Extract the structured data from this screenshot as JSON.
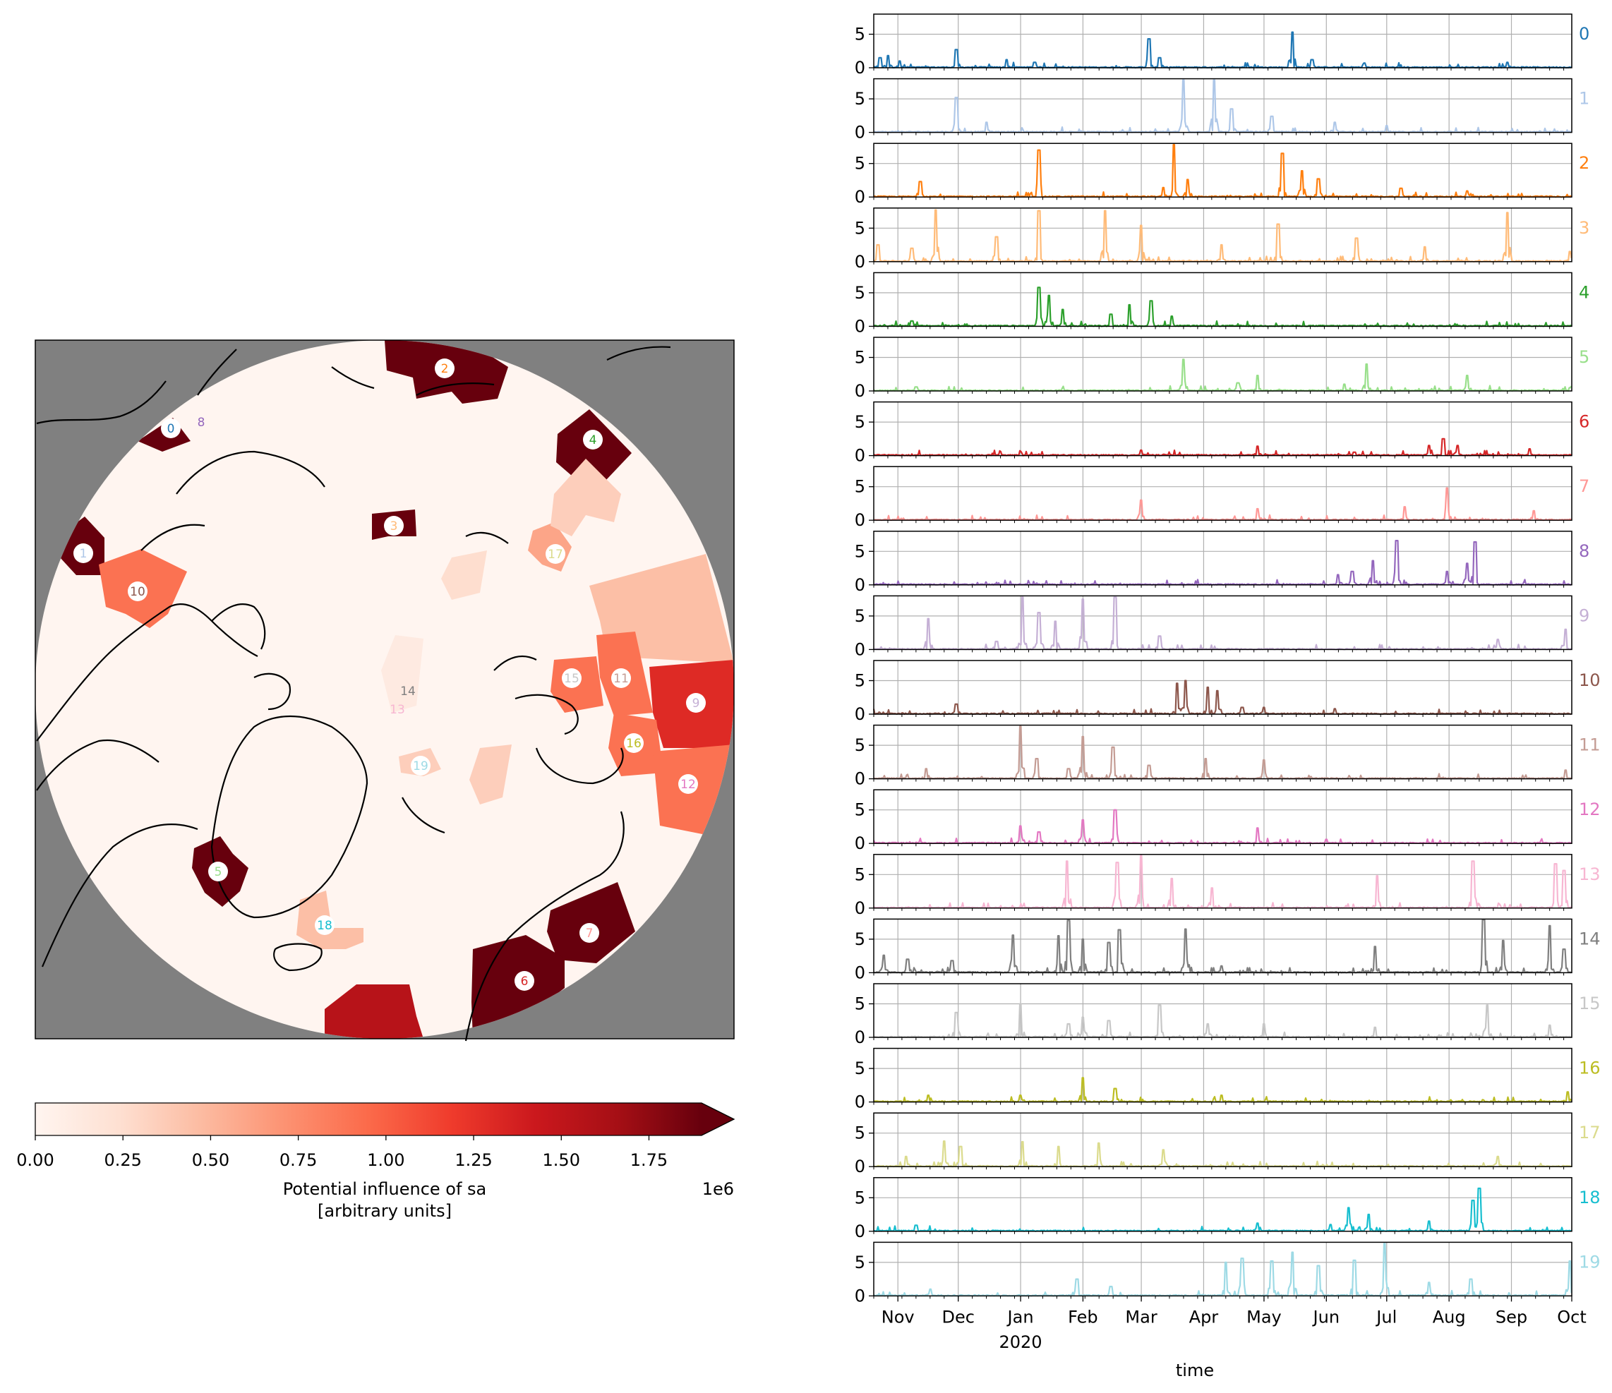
{
  "chart_data": [
    {
      "type": "heatmap",
      "title": "",
      "colorbar": {
        "label_line1": "Potential influence of sa",
        "label_line2": "[arbitrary units]",
        "ticks": [
          "0.00",
          "0.25",
          "0.50",
          "0.75",
          "1.00",
          "1.25",
          "1.50",
          "1.75"
        ],
        "tick_values": [
          0,
          0.25,
          0.5,
          0.75,
          1.0,
          1.25,
          1.5,
          1.75
        ],
        "scale_note": "1e6",
        "range": [
          0,
          1.9
        ],
        "extend": "max",
        "colormap": "Reds"
      },
      "regions": [
        {
          "label": "0",
          "value": 1.9,
          "color": "#1f77b4"
        },
        {
          "label": "1",
          "value": 1.9,
          "color": "#aec7e8"
        },
        {
          "label": "2",
          "value": 1.9,
          "color": "#ff7f0e"
        },
        {
          "label": "3",
          "value": 1.9,
          "color": "#ffbb78"
        },
        {
          "label": "4",
          "value": 1.9,
          "color": "#2ca02c"
        },
        {
          "label": "5",
          "value": 1.9,
          "color": "#98df8a"
        },
        {
          "label": "6",
          "value": 1.9,
          "color": "#d62728"
        },
        {
          "label": "7",
          "value": 1.9,
          "color": "#ff9896"
        },
        {
          "label": "8",
          "value": 0.0,
          "color": "#9467bd"
        },
        {
          "label": "9",
          "value": 1.3,
          "color": "#c5b0d5"
        },
        {
          "label": "10",
          "value": 0.9,
          "color": "#8c564b"
        },
        {
          "label": "11",
          "value": 0.9,
          "color": "#c49c94"
        },
        {
          "label": "12",
          "value": 0.9,
          "color": "#e377c2"
        },
        {
          "label": "13",
          "value": 0.05,
          "color": "#f7b6d2"
        },
        {
          "label": "14",
          "value": 0.05,
          "color": "#7f7f7f"
        },
        {
          "label": "15",
          "value": 0.9,
          "color": "#c7c7c7"
        },
        {
          "label": "16",
          "value": 0.9,
          "color": "#bcbd22"
        },
        {
          "label": "17",
          "value": 0.6,
          "color": "#dbdb8d"
        },
        {
          "label": "18",
          "value": 0.45,
          "color": "#17becf"
        },
        {
          "label": "19",
          "value": 0.35,
          "color": "#9edae5"
        }
      ]
    },
    {
      "type": "line",
      "xlabel": "time",
      "x_ticks": [
        "Nov",
        "Dec",
        "Jan",
        "Feb",
        "Mar",
        "Apr",
        "May",
        "Jun",
        "Jul",
        "Aug",
        "Sep",
        "Oct"
      ],
      "x_year_label": "2020",
      "x_range": [
        "2019-10-20",
        "2020-10-01"
      ],
      "y_ticks": [
        "0",
        "5"
      ],
      "ylim": [
        0,
        8
      ],
      "grid": true,
      "series": [
        {
          "name": "0",
          "color": "#1f77b4",
          "peaks": [
            [
              "2019-10-23",
              1.5
            ],
            [
              "2019-10-27",
              1.8
            ],
            [
              "2019-11-02",
              1
            ],
            [
              "2019-11-30",
              2.7
            ],
            [
              "2019-12-25",
              1.2
            ],
            [
              "2020-01-08",
              0.8
            ],
            [
              "2020-03-05",
              4.3
            ],
            [
              "2020-03-10",
              1.5
            ],
            [
              "2020-05-15",
              5.3
            ],
            [
              "2020-05-25",
              1.2
            ],
            [
              "2020-06-20",
              0.7
            ],
            [
              "2020-08-30",
              0.8
            ]
          ]
        },
        {
          "name": "1",
          "color": "#aec7e8",
          "peaks": [
            [
              "2019-11-30",
              5.2
            ],
            [
              "2019-12-15",
              1.5
            ],
            [
              "2020-03-22",
              7.8
            ],
            [
              "2020-04-06",
              7.8
            ],
            [
              "2020-04-15",
              3.5
            ],
            [
              "2020-05-05",
              2.4
            ],
            [
              "2020-06-05",
              1.5
            ],
            [
              "2020-07-01",
              1
            ]
          ]
        },
        {
          "name": "2",
          "color": "#ff7f0e",
          "peaks": [
            [
              "2019-11-12",
              2.3
            ],
            [
              "2020-01-10",
              7
            ],
            [
              "2020-03-12",
              1.4
            ],
            [
              "2020-03-17",
              7.8
            ],
            [
              "2020-03-24",
              2.6
            ],
            [
              "2020-05-10",
              6.5
            ],
            [
              "2020-05-20",
              3.9
            ],
            [
              "2020-05-28",
              2.7
            ],
            [
              "2020-07-08",
              1.3
            ],
            [
              "2020-08-10",
              0.9
            ]
          ]
        },
        {
          "name": "3",
          "color": "#ffbb78",
          "peaks": [
            [
              "2019-10-22",
              2.5
            ],
            [
              "2019-11-08",
              2
            ],
            [
              "2019-11-20",
              7.7
            ],
            [
              "2019-12-20",
              3.7
            ],
            [
              "2020-01-10",
              7.6
            ],
            [
              "2020-02-12",
              7.6
            ],
            [
              "2020-03-01",
              5.4
            ],
            [
              "2020-04-10",
              2.5
            ],
            [
              "2020-05-08",
              5.6
            ],
            [
              "2020-06-16",
              3.5
            ],
            [
              "2020-07-20",
              2.2
            ],
            [
              "2020-08-30",
              7.3
            ],
            [
              "2020-09-30",
              1.5
            ]
          ]
        },
        {
          "name": "4",
          "color": "#2ca02c",
          "peaks": [
            [
              "2019-11-08",
              0.8
            ],
            [
              "2020-01-10",
              5.8
            ],
            [
              "2020-01-15",
              4.6
            ],
            [
              "2020-01-22",
              2.5
            ],
            [
              "2020-02-15",
              1.8
            ],
            [
              "2020-02-24",
              3.2
            ],
            [
              "2020-03-06",
              3.8
            ],
            [
              "2020-03-16",
              1.5
            ]
          ]
        },
        {
          "name": "5",
          "color": "#98df8a",
          "peaks": [
            [
              "2019-11-10",
              0.6
            ],
            [
              "2020-03-22",
              4.7
            ],
            [
              "2020-04-18",
              1.2
            ],
            [
              "2020-04-28",
              2.3
            ],
            [
              "2020-06-10",
              1
            ],
            [
              "2020-06-21",
              4
            ],
            [
              "2020-08-10",
              2.3
            ],
            [
              "2020-09-30",
              0.5
            ]
          ]
        },
        {
          "name": "6",
          "color": "#d62728",
          "peaks": [
            [
              "2020-03-01",
              0.8
            ],
            [
              "2020-04-28",
              1.4
            ],
            [
              "2020-06-15",
              0.5
            ],
            [
              "2020-07-22",
              1.5
            ],
            [
              "2020-07-29",
              2.5
            ],
            [
              "2020-08-05",
              1.5
            ],
            [
              "2020-09-10",
              1
            ]
          ]
        },
        {
          "name": "7",
          "color": "#ff9896",
          "peaks": [
            [
              "2020-03-01",
              3
            ],
            [
              "2020-04-28",
              1.7
            ],
            [
              "2020-07-10",
              2
            ],
            [
              "2020-07-31",
              4.8
            ],
            [
              "2020-09-12",
              1.4
            ]
          ]
        },
        {
          "name": "8",
          "color": "#9467bd",
          "peaks": [
            [
              "2020-06-07",
              1.5
            ],
            [
              "2020-06-14",
              2
            ],
            [
              "2020-06-24",
              3.6
            ],
            [
              "2020-07-06",
              6.6
            ],
            [
              "2020-07-31",
              2
            ],
            [
              "2020-08-10",
              3.2
            ],
            [
              "2020-08-14",
              6.4
            ]
          ]
        },
        {
          "name": "9",
          "color": "#c5b0d5",
          "peaks": [
            [
              "2019-11-16",
              4.6
            ],
            [
              "2019-12-20",
              1.2
            ],
            [
              "2020-01-02",
              7.8
            ],
            [
              "2020-01-10",
              5.5
            ],
            [
              "2020-01-18",
              4.2
            ],
            [
              "2020-02-01",
              7.5
            ],
            [
              "2020-02-17",
              7.8
            ],
            [
              "2020-03-10",
              2
            ],
            [
              "2020-08-25",
              1.5
            ],
            [
              "2020-09-28",
              3
            ]
          ]
        },
        {
          "name": "10",
          "color": "#8c564b",
          "peaks": [
            [
              "2019-11-30",
              1.5
            ],
            [
              "2020-03-19",
              4.6
            ],
            [
              "2020-03-23",
              5
            ],
            [
              "2020-04-03",
              4
            ],
            [
              "2020-04-08",
              3.5
            ],
            [
              "2020-04-20",
              1
            ],
            [
              "2020-05-01",
              1
            ],
            [
              "2020-06-05",
              0.8
            ]
          ]
        },
        {
          "name": "11",
          "color": "#c49c94",
          "peaks": [
            [
              "2019-11-15",
              1.5
            ],
            [
              "2020-01-01",
              7.8
            ],
            [
              "2020-01-09",
              3
            ],
            [
              "2020-01-25",
              1.5
            ],
            [
              "2020-02-01",
              6.3
            ],
            [
              "2020-02-16",
              4.7
            ],
            [
              "2020-03-05",
              2
            ],
            [
              "2020-04-02",
              3
            ],
            [
              "2020-05-01",
              2.8
            ],
            [
              "2020-09-28",
              1.3
            ]
          ]
        },
        {
          "name": "12",
          "color": "#e377c2",
          "peaks": [
            [
              "2020-01-01",
              2.6
            ],
            [
              "2020-01-10",
              1.7
            ],
            [
              "2020-02-01",
              3.5
            ],
            [
              "2020-02-17",
              5
            ],
            [
              "2020-04-28",
              2.3
            ],
            [
              "2020-06-01",
              0.6
            ]
          ]
        },
        {
          "name": "13",
          "color": "#f7b6d2",
          "peaks": [
            [
              "2020-01-24",
              7
            ],
            [
              "2020-02-18",
              6.8
            ],
            [
              "2020-03-01",
              7.8
            ],
            [
              "2020-03-16",
              4.4
            ],
            [
              "2020-04-05",
              3
            ],
            [
              "2020-06-26",
              4.8
            ],
            [
              "2020-08-13",
              7
            ],
            [
              "2020-09-23",
              6.6
            ],
            [
              "2020-09-27",
              5.6
            ]
          ]
        },
        {
          "name": "14",
          "color": "#7f7f7f",
          "peaks": [
            [
              "2019-10-25",
              2.6
            ],
            [
              "2019-11-06",
              2
            ],
            [
              "2019-11-28",
              1.8
            ],
            [
              "2019-12-28",
              5.6
            ],
            [
              "2020-01-20",
              5.5
            ],
            [
              "2020-01-25",
              7.8
            ],
            [
              "2020-02-01",
              5
            ],
            [
              "2020-02-14",
              4.5
            ],
            [
              "2020-02-19",
              6.4
            ],
            [
              "2020-03-23",
              6.5
            ],
            [
              "2020-04-10",
              1
            ],
            [
              "2020-06-25",
              3.9
            ],
            [
              "2020-08-18",
              7.9
            ],
            [
              "2020-08-28",
              4.8
            ],
            [
              "2020-09-20",
              7
            ],
            [
              "2020-09-27",
              3.5
            ]
          ]
        },
        {
          "name": "15",
          "color": "#c7c7c7",
          "peaks": [
            [
              "2019-11-30",
              3.7
            ],
            [
              "2020-01-01",
              5
            ],
            [
              "2020-01-25",
              2
            ],
            [
              "2020-02-01",
              3
            ],
            [
              "2020-02-14",
              2.5
            ],
            [
              "2020-03-10",
              4.8
            ],
            [
              "2020-04-03",
              2
            ],
            [
              "2020-05-01",
              2
            ],
            [
              "2020-06-25",
              1.5
            ],
            [
              "2020-08-20",
              4.8
            ],
            [
              "2020-09-20",
              1.8
            ]
          ]
        },
        {
          "name": "16",
          "color": "#bcbd22",
          "peaks": [
            [
              "2019-11-16",
              1
            ],
            [
              "2020-01-01",
              1
            ],
            [
              "2020-02-01",
              3.6
            ],
            [
              "2020-02-17",
              2
            ],
            [
              "2020-04-10",
              1
            ],
            [
              "2020-09-29",
              1.5
            ]
          ]
        },
        {
          "name": "17",
          "color": "#dbdb8d",
          "peaks": [
            [
              "2019-11-05",
              1.5
            ],
            [
              "2019-11-24",
              3.8
            ],
            [
              "2019-12-02",
              3
            ],
            [
              "2020-01-02",
              3.7
            ],
            [
              "2020-01-20",
              3
            ],
            [
              "2020-02-09",
              3.5
            ],
            [
              "2020-03-12",
              2.5
            ],
            [
              "2020-08-25",
              1.5
            ]
          ]
        },
        {
          "name": "18",
          "color": "#17becf",
          "peaks": [
            [
              "2019-11-10",
              0.9
            ],
            [
              "2020-04-28",
              1.2
            ],
            [
              "2020-06-03",
              1
            ],
            [
              "2020-06-12",
              3.5
            ],
            [
              "2020-06-22",
              2.5
            ],
            [
              "2020-07-22",
              1.5
            ],
            [
              "2020-08-13",
              4.6
            ],
            [
              "2020-08-16",
              6.4
            ]
          ]
        },
        {
          "name": "19",
          "color": "#9edae5",
          "peaks": [
            [
              "2019-11-17",
              1
            ],
            [
              "2020-01-29",
              2.5
            ],
            [
              "2020-02-15",
              1.4
            ],
            [
              "2020-04-12",
              5
            ],
            [
              "2020-04-20",
              5.6
            ],
            [
              "2020-05-05",
              5.2
            ],
            [
              "2020-05-15",
              6.5
            ],
            [
              "2020-05-28",
              4.5
            ],
            [
              "2020-06-15",
              5.3
            ],
            [
              "2020-06-30",
              7.8
            ],
            [
              "2020-07-22",
              2
            ],
            [
              "2020-08-12",
              2.5
            ],
            [
              "2020-09-30",
              5.2
            ]
          ]
        }
      ]
    }
  ]
}
